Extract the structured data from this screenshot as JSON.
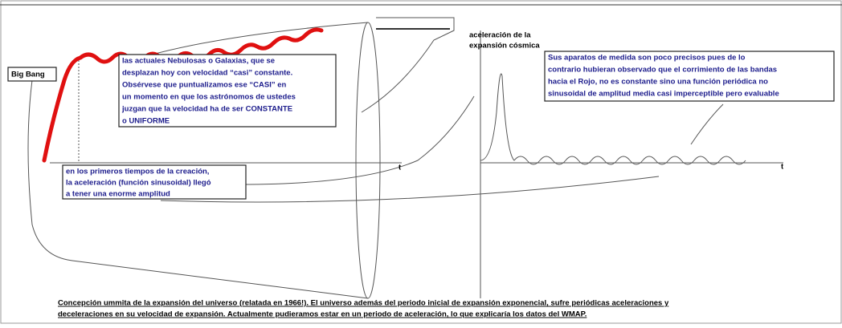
{
  "big_bang": "Big Bang",
  "galaxies_note": {
    "lines": [
      "las actuales Nebulosas o Galaxias, que se",
      "desplazan hoy con velocidad “casi” constante.",
      "Obsérvese que puntualizamos ese “CASI” en",
      "un momento en que los astrónomos de ustedes",
      "juzgan que la velocidad ha de ser CONSTANTE",
      "o UNIFORME"
    ]
  },
  "acceleration_label": {
    "lines": [
      "aceleración de la",
      "expansión cósmica"
    ]
  },
  "measurement_note": {
    "lines": [
      "Sus aparatos de medida son poco precisos pues de lo",
      "contrario hubieran observado que el corrimiento de las bandas",
      "hacia el Rojo, no es constante sino una función periódica no",
      "sinusoidal de amplitud media casi imperceptible pero evaluable"
    ]
  },
  "early_note": {
    "lines": [
      "en los primeros tiempos de la creación,",
      "la aceleración (función sinusoidal) llegó",
      "a tener una enorme amplitud"
    ]
  },
  "left_axis_label": "t",
  "right_axis_label": "t",
  "caption": {
    "lines": [
      "Concepción ummita de la expansión del universo (relatada en 1966!). El universo además del periodo inicial de expansión exponencial, sufre periódicas aceleraciones y",
      "deceleraciones en su velocidad de expansión. Actualmente pudieramos estar en un periodo de aceleración, lo que explicaría los datos del WMAP."
    ]
  }
}
